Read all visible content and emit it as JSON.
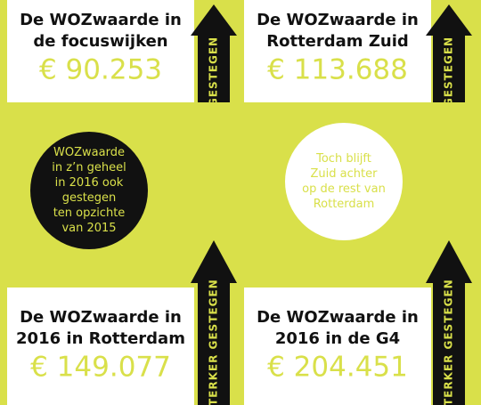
{
  "boxes": [
    {
      "title": [
        "De WOZwaarde in",
        "de focuswijken"
      ],
      "value": "€ 90.253",
      "arrow": "GESTEGEN"
    },
    {
      "title": [
        "De WOZwaarde in",
        "Rotterdam Zuid"
      ],
      "value": "€ 113.688",
      "arrow": "GESTEGEN"
    },
    {
      "title": [
        "De WOZwaarde in",
        "2016 in Rotterdam"
      ],
      "value": "€ 149.077",
      "arrow": "STERKER GESTEGEN"
    },
    {
      "title": [
        "De WOZwaarde in",
        "2016 in de G4"
      ],
      "value": "€ 204.451",
      "arrow": "STERKER GESTEGEN"
    }
  ],
  "circles": [
    {
      "lines": [
        "WOZwaarde",
        "in z’n geheel",
        "in 2016 ook",
        "gestegen",
        "ten opzichte",
        "van 2015"
      ]
    },
    {
      "lines": [
        "Toch blijft",
        "Zuid achter",
        "op de rest van",
        "Rotterdam"
      ]
    }
  ]
}
